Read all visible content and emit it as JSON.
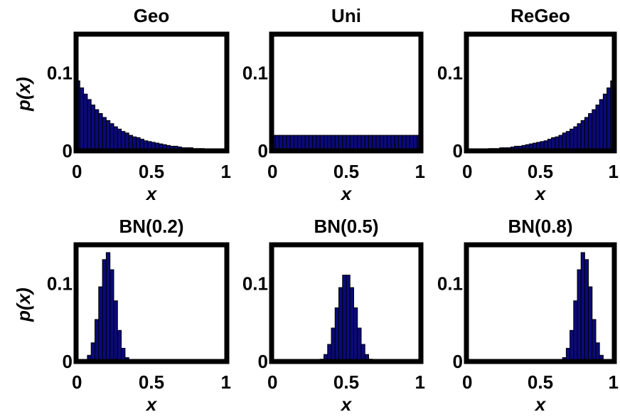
{
  "chart_data": [
    {
      "type": "bar",
      "title": "Geo",
      "xlabel": "x",
      "ylabel": "p(x)",
      "xlim": [
        0,
        1
      ],
      "ylim": [
        0,
        0.15
      ],
      "xticks": [
        "0",
        "0.5",
        "1"
      ],
      "yticks": [
        "0",
        "0.1"
      ],
      "distribution": "geometric-decreasing",
      "x": [
        0.0125,
        0.0375,
        0.0625,
        0.0875,
        0.1125,
        0.1375,
        0.1625,
        0.1875,
        0.2125,
        0.2375,
        0.2625,
        0.2875,
        0.3125,
        0.3375,
        0.3625,
        0.3875,
        0.4125,
        0.4375,
        0.4625,
        0.4875,
        0.5125,
        0.5375,
        0.5625,
        0.5875,
        0.6125,
        0.6375,
        0.6625,
        0.6875,
        0.7125,
        0.7375,
        0.7625,
        0.7875,
        0.8125,
        0.8375,
        0.8625,
        0.8875,
        0.9125,
        0.9375,
        0.9625,
        0.9875
      ],
      "values": [
        0.09,
        0.081,
        0.073,
        0.066,
        0.059,
        0.053,
        0.048,
        0.043,
        0.039,
        0.035,
        0.031,
        0.028,
        0.025,
        0.023,
        0.02,
        0.018,
        0.017,
        0.015,
        0.013,
        0.012,
        0.011,
        0.01,
        0.009,
        0.008,
        0.007,
        0.006,
        0.006,
        0.005,
        0.004,
        0.004,
        0.004,
        0.003,
        0.003,
        0.003,
        0.002,
        0.002,
        0.002,
        0.002,
        0.001,
        0.001
      ]
    },
    {
      "type": "bar",
      "title": "Uni",
      "xlabel": "x",
      "ylabel": "",
      "xlim": [
        0,
        1
      ],
      "ylim": [
        0,
        0.15
      ],
      "xticks": [
        "0",
        "0.5",
        "1"
      ],
      "yticks": [
        "0",
        "0.1"
      ],
      "distribution": "uniform",
      "x": [
        0.0125,
        0.0375,
        0.0625,
        0.0875,
        0.1125,
        0.1375,
        0.1625,
        0.1875,
        0.2125,
        0.2375,
        0.2625,
        0.2875,
        0.3125,
        0.3375,
        0.3625,
        0.3875,
        0.4125,
        0.4375,
        0.4625,
        0.4875,
        0.5125,
        0.5375,
        0.5625,
        0.5875,
        0.6125,
        0.6375,
        0.6625,
        0.6875,
        0.7125,
        0.7375,
        0.7625,
        0.7875,
        0.8125,
        0.8375,
        0.8625,
        0.8875,
        0.9125,
        0.9375,
        0.9625,
        0.9875
      ],
      "values": [
        0.02,
        0.02,
        0.02,
        0.02,
        0.02,
        0.02,
        0.02,
        0.02,
        0.02,
        0.02,
        0.02,
        0.02,
        0.02,
        0.02,
        0.02,
        0.02,
        0.02,
        0.02,
        0.02,
        0.02,
        0.02,
        0.02,
        0.02,
        0.02,
        0.02,
        0.02,
        0.02,
        0.02,
        0.02,
        0.02,
        0.02,
        0.02,
        0.02,
        0.02,
        0.02,
        0.02,
        0.02,
        0.02,
        0.02,
        0.02
      ]
    },
    {
      "type": "bar",
      "title": "ReGeo",
      "xlabel": "x",
      "ylabel": "",
      "xlim": [
        0,
        1
      ],
      "ylim": [
        0,
        0.15
      ],
      "xticks": [
        "0",
        "0.5",
        "1"
      ],
      "yticks": [
        "0",
        "0.1"
      ],
      "distribution": "geometric-increasing",
      "x": [
        0.0125,
        0.0375,
        0.0625,
        0.0875,
        0.1125,
        0.1375,
        0.1625,
        0.1875,
        0.2125,
        0.2375,
        0.2625,
        0.2875,
        0.3125,
        0.3375,
        0.3625,
        0.3875,
        0.4125,
        0.4375,
        0.4625,
        0.4875,
        0.5125,
        0.5375,
        0.5625,
        0.5875,
        0.6125,
        0.6375,
        0.6625,
        0.6875,
        0.7125,
        0.7375,
        0.7625,
        0.7875,
        0.8125,
        0.8375,
        0.8625,
        0.8875,
        0.9125,
        0.9375,
        0.9625,
        0.9875
      ],
      "values": [
        0.001,
        0.001,
        0.002,
        0.002,
        0.002,
        0.002,
        0.003,
        0.003,
        0.003,
        0.004,
        0.004,
        0.004,
        0.005,
        0.006,
        0.006,
        0.007,
        0.008,
        0.009,
        0.01,
        0.011,
        0.012,
        0.013,
        0.015,
        0.017,
        0.018,
        0.02,
        0.023,
        0.025,
        0.028,
        0.031,
        0.035,
        0.039,
        0.043,
        0.048,
        0.053,
        0.059,
        0.066,
        0.073,
        0.081,
        0.09
      ]
    },
    {
      "type": "bar",
      "title": "BN(0.2)",
      "xlabel": "x",
      "ylabel": "p(x)",
      "xlim": [
        0,
        1
      ],
      "ylim": [
        0,
        0.15
      ],
      "xticks": [
        "0",
        "0.5",
        "1"
      ],
      "yticks": [
        "0",
        "0.1"
      ],
      "distribution": "binomial p=0.2",
      "x": [
        0.0125,
        0.0375,
        0.0625,
        0.0875,
        0.1125,
        0.1375,
        0.1625,
        0.1875,
        0.2125,
        0.2375,
        0.2625,
        0.2875,
        0.3125,
        0.3375,
        0.3625,
        0.3875,
        0.4125,
        0.4375,
        0.4625,
        0.4875,
        0.5125,
        0.5375,
        0.5625,
        0.5875,
        0.6125,
        0.6375,
        0.6625,
        0.6875,
        0.7125,
        0.7375,
        0.7625,
        0.7875,
        0.8125,
        0.8375,
        0.8625,
        0.8875,
        0.9125,
        0.9375,
        0.9625,
        0.9875
      ],
      "values": [
        0,
        0,
        0.002,
        0.008,
        0.024,
        0.054,
        0.096,
        0.131,
        0.14,
        0.118,
        0.078,
        0.04,
        0.017,
        0.005,
        0.001,
        0,
        0,
        0,
        0,
        0,
        0,
        0,
        0,
        0,
        0,
        0,
        0,
        0,
        0,
        0,
        0,
        0,
        0,
        0,
        0,
        0,
        0,
        0,
        0,
        0
      ]
    },
    {
      "type": "bar",
      "title": "BN(0.5)",
      "xlabel": "x",
      "ylabel": "",
      "xlim": [
        0,
        1
      ],
      "ylim": [
        0,
        0.15
      ],
      "xticks": [
        "0",
        "0.5",
        "1"
      ],
      "yticks": [
        "0",
        "0.1"
      ],
      "distribution": "binomial p=0.5",
      "x": [
        0.0125,
        0.0375,
        0.0625,
        0.0875,
        0.1125,
        0.1375,
        0.1625,
        0.1875,
        0.2125,
        0.2375,
        0.2625,
        0.2875,
        0.3125,
        0.3375,
        0.3625,
        0.3875,
        0.4125,
        0.4375,
        0.4625,
        0.4875,
        0.5125,
        0.5375,
        0.5625,
        0.5875,
        0.6125,
        0.6375,
        0.6625,
        0.6875,
        0.7125,
        0.7375,
        0.7625,
        0.7875,
        0.8125,
        0.8375,
        0.8625,
        0.8875,
        0.9125,
        0.9375,
        0.9625,
        0.9875
      ],
      "values": [
        0,
        0,
        0,
        0,
        0,
        0,
        0,
        0,
        0,
        0,
        0,
        0,
        0.001,
        0.003,
        0.009,
        0.022,
        0.043,
        0.069,
        0.095,
        0.111,
        0.111,
        0.095,
        0.069,
        0.043,
        0.022,
        0.009,
        0.003,
        0.001,
        0,
        0,
        0,
        0,
        0,
        0,
        0,
        0,
        0,
        0,
        0,
        0
      ]
    },
    {
      "type": "bar",
      "title": "BN(0.8)",
      "xlabel": "x",
      "ylabel": "",
      "xlim": [
        0,
        1
      ],
      "ylim": [
        0,
        0.15
      ],
      "xticks": [
        "0",
        "0.5",
        "1"
      ],
      "yticks": [
        "0",
        "0.1"
      ],
      "distribution": "binomial p=0.8",
      "x": [
        0.0125,
        0.0375,
        0.0625,
        0.0875,
        0.1125,
        0.1375,
        0.1625,
        0.1875,
        0.2125,
        0.2375,
        0.2625,
        0.2875,
        0.3125,
        0.3375,
        0.3625,
        0.3875,
        0.4125,
        0.4375,
        0.4625,
        0.4875,
        0.5125,
        0.5375,
        0.5625,
        0.5875,
        0.6125,
        0.6375,
        0.6625,
        0.6875,
        0.7125,
        0.7375,
        0.7625,
        0.7875,
        0.8125,
        0.8375,
        0.8625,
        0.8875,
        0.9125,
        0.9375,
        0.9625,
        0.9875
      ],
      "values": [
        0,
        0,
        0,
        0,
        0,
        0,
        0,
        0,
        0,
        0,
        0,
        0,
        0,
        0,
        0,
        0,
        0,
        0,
        0,
        0,
        0,
        0,
        0,
        0,
        0,
        0.001,
        0.005,
        0.017,
        0.04,
        0.078,
        0.118,
        0.14,
        0.131,
        0.096,
        0.054,
        0.024,
        0.008,
        0.002,
        0,
        0
      ]
    }
  ],
  "colors": {
    "bar_fill": "#0a0a7a",
    "bar_edge": "#000000",
    "frame": "#000000"
  }
}
